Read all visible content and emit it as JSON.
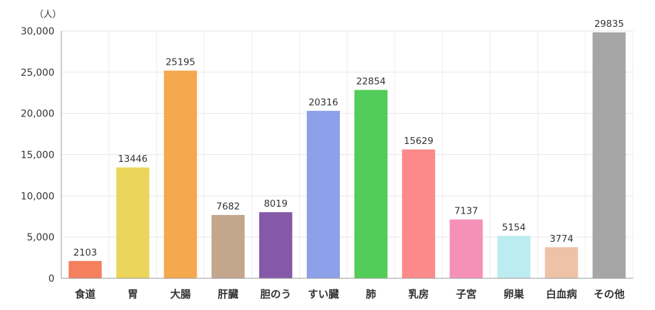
{
  "chart_data": {
    "type": "bar",
    "unit_label": "（人）",
    "categories": [
      "食道",
      "胃",
      "大腸",
      "肝臓",
      "胆のう",
      "すい臓",
      "肺",
      "乳房",
      "子宮",
      "卵巣",
      "白血病",
      "その他"
    ],
    "values": [
      2103,
      13446,
      25195,
      7682,
      8019,
      20316,
      22854,
      15629,
      7137,
      5154,
      3774,
      29835
    ],
    "value_labels": [
      "2103",
      "13446",
      "25195",
      "7682",
      "8019",
      "20316",
      "22854",
      "15629",
      "7137",
      "5154",
      "3774",
      "29835"
    ],
    "colors": [
      "#f4805e",
      "#ebd55a",
      "#f6a84f",
      "#c4a68d",
      "#8659a8",
      "#8ca1ea",
      "#52cd59",
      "#fd8a8a",
      "#f591b6",
      "#bbecf0",
      "#edc2a7",
      "#a6a6a6"
    ],
    "ylim": [
      0,
      30000
    ],
    "yticks": [
      0,
      5000,
      10000,
      15000,
      20000,
      25000,
      30000
    ],
    "ytick_labels": [
      "0",
      "5,000",
      "10,000",
      "15,000",
      "20,000",
      "25,000",
      "30,000"
    ],
    "grid": true,
    "legend": "none"
  }
}
